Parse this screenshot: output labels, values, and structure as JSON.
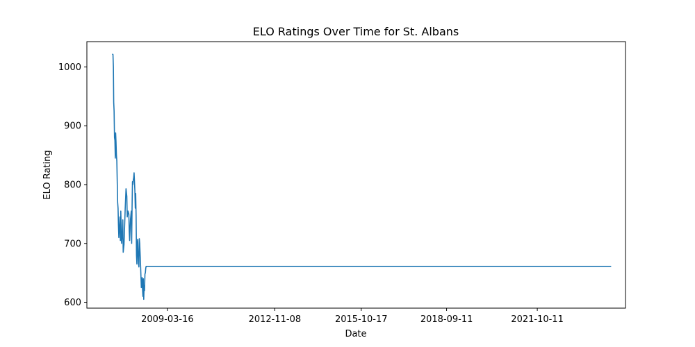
{
  "chart_data": {
    "type": "line",
    "title": "ELO Ratings Over Time for St. Albans",
    "xlabel": "Date",
    "ylabel": "ELO Rating",
    "xlim": [
      "2006-06-20",
      "2024-10-10"
    ],
    "ylim": [
      590,
      1043
    ],
    "x_ticks": [
      "2009-03-16",
      "2012-11-08",
      "2015-10-17",
      "2018-09-11",
      "2021-10-11"
    ],
    "y_ticks": [
      600,
      700,
      800,
      900,
      1000
    ],
    "grid": false,
    "legend": "none",
    "series_color": "#1f77b4",
    "series": [
      {
        "x": [
          "2007-05-01",
          "2007-05-10",
          "2007-05-15",
          "2007-05-19",
          "2007-05-24",
          "2007-05-29",
          "2007-06-03",
          "2007-06-08",
          "2007-06-12",
          "2007-06-17",
          "2007-06-22",
          "2007-06-27",
          "2007-07-02",
          "2007-07-07",
          "2007-07-12",
          "2007-07-17",
          "2007-07-22",
          "2007-08-05",
          "2007-08-10",
          "2007-08-15",
          "2007-08-25",
          "2007-09-04",
          "2007-09-09",
          "2007-09-14",
          "2007-09-24",
          "2007-10-09",
          "2007-10-19",
          "2007-10-29",
          "2007-11-03",
          "2007-11-13",
          "2007-11-23",
          "2007-11-28",
          "2007-12-03",
          "2007-12-13",
          "2007-12-23",
          "2007-12-28",
          "2008-01-02",
          "2008-01-07",
          "2008-01-12",
          "2008-01-17",
          "2008-01-22",
          "2008-01-27",
          "2008-02-06",
          "2008-02-11",
          "2008-02-16",
          "2008-02-21",
          "2008-02-26",
          "2008-03-02",
          "2008-03-07",
          "2008-03-12",
          "2008-03-17",
          "2008-03-22",
          "2008-03-27",
          "2008-04-01",
          "2008-04-06",
          "2008-04-16",
          "2008-04-21",
          "2008-04-26",
          "2008-05-06",
          "2008-05-11",
          "2008-05-16",
          "2008-05-21",
          "2008-05-26",
          "2008-05-31",
          "2008-06-05",
          "2008-06-10",
          "2008-06-15",
          "2008-06-20",
          "2008-06-25",
          "2008-07-05",
          "2008-07-15",
          "2008-07-20",
          "2008-07-25",
          "2008-07-30",
          "2008-08-04",
          "2024-04-15"
        ],
        "values": [
          1022,
          1021,
          1000,
          940,
          925,
          880,
          875,
          845,
          888,
          872,
          850,
          840,
          805,
          770,
          760,
          730,
          710,
          745,
          705,
          755,
          700,
          720,
          740,
          685,
          698,
          760,
          793,
          780,
          745,
          755,
          750,
          720,
          705,
          740,
          755,
          700,
          760,
          805,
          800,
          808,
          812,
          820,
          790,
          760,
          785,
          748,
          680,
          665,
          700,
          707,
          680,
          665,
          660,
          708,
          700,
          665,
          645,
          625,
          642,
          622,
          610,
          640,
          605,
          628,
          620,
          648,
          650,
          658,
          661,
          661,
          661,
          661,
          661,
          661,
          661,
          661
        ]
      }
    ]
  }
}
